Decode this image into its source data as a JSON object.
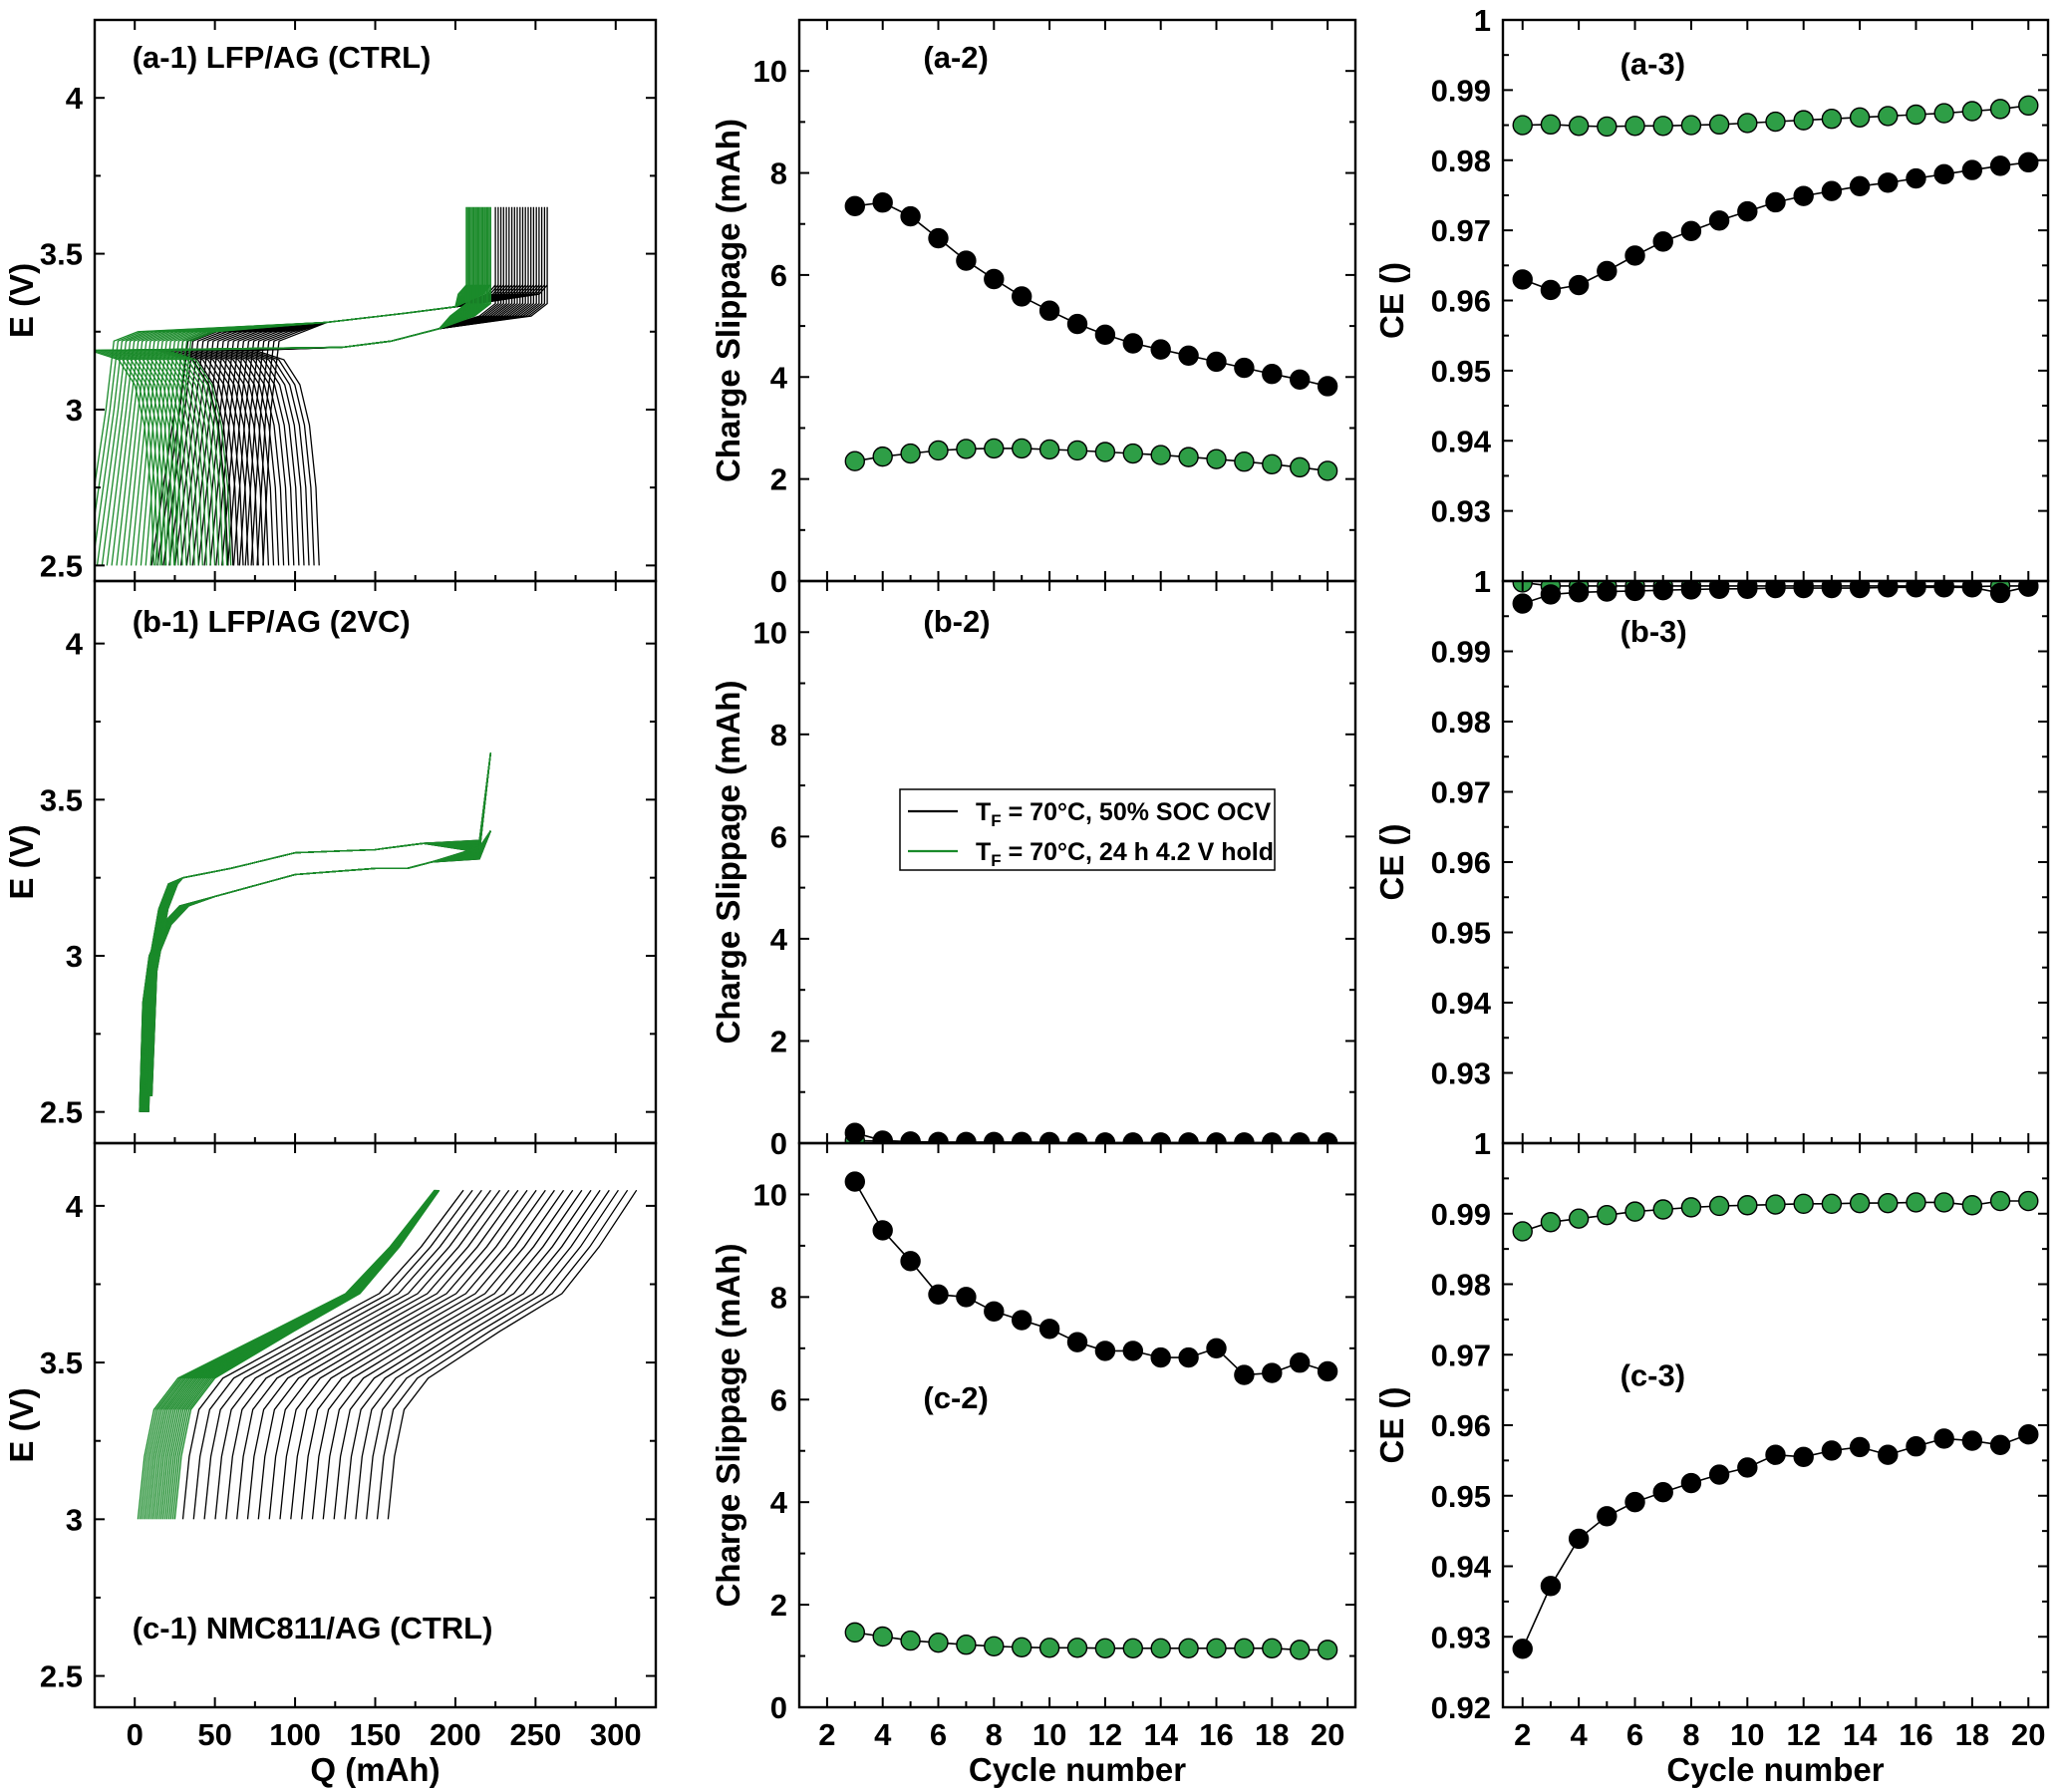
{
  "colors": {
    "black_series": "#000000",
    "green_series": "#2e9e46",
    "green_line": "#1a8a2a"
  },
  "legend": {
    "entries": [
      {
        "prefix": "T",
        "sub": "F",
        "suffix": " = 70°C, 50% SOC OCV"
      },
      {
        "prefix": "T",
        "sub": "F",
        "suffix": " = 70°C, 24 h 4.2 V hold"
      }
    ],
    "placement": "panel b-2 center"
  },
  "chart_data": [
    {
      "id": "a-1",
      "type": "line",
      "tag": "(a-1) LFP/AG (CTRL)",
      "xlabel": "",
      "ylabel": "E (V)",
      "xlim": [
        -25,
        325
      ],
      "ylim": [
        2.45,
        4.25
      ],
      "yticks": [
        "2.5",
        "3",
        "3.5",
        "4"
      ],
      "series": [
        {
          "family": "TF = 70°C, 50% SOC OCV",
          "count": 20,
          "q_end_first": 115,
          "q_end_last": 55,
          "v_max": 3.65
        },
        {
          "family": "TF = 70°C, 24 h 4.2 V hold",
          "count": 20,
          "q_end_first": 60,
          "q_end_last": 12,
          "v_max": 3.65
        }
      ]
    },
    {
      "id": "b-1",
      "type": "line",
      "tag": "(b-1) LFP/AG (2VC)",
      "xlabel": "",
      "ylabel": "E (V)",
      "xlim": [
        -25,
        325
      ],
      "ylim": [
        2.4,
        4.2
      ],
      "yticks": [
        "2.5",
        "3",
        "3.5",
        "4"
      ],
      "series": [
        {
          "family": "TF = 70°C, 50% SOC OCV",
          "count": 20,
          "q_max": 222,
          "v_max": 3.65
        },
        {
          "family": "TF = 70°C, 24 h 4.2 V hold",
          "count": 20,
          "q_max": 222,
          "v_max": 3.65
        }
      ]
    },
    {
      "id": "c-1",
      "type": "line",
      "tag": "(c-1) NMC811/AG (CTRL)",
      "xlabel": "Q (mAh)",
      "ylabel": "E (V)",
      "xlim": [
        -25,
        325
      ],
      "ylim": [
        2.4,
        4.2
      ],
      "yticks": [
        "2.5",
        "3",
        "3.5",
        "4"
      ],
      "xticks": [
        "0",
        "50",
        "100",
        "150",
        "200",
        "250",
        "300"
      ],
      "series": [
        {
          "family": "TF = 70°C, 50% SOC OCV",
          "count": 20,
          "q_start_first": 30,
          "q_start_last": 158,
          "q_top_last": 312,
          "v_max": 4.05
        },
        {
          "family": "TF = 70°C, 24 h 4.2 V hold",
          "count": 20,
          "q_start_first": 25,
          "q_start_last": 2,
          "q_top_last": 190,
          "v_max": 4.05
        }
      ]
    },
    {
      "id": "a-2",
      "type": "scatter",
      "tag": "(a-2)",
      "xlabel": "",
      "ylabel": "Charge Slippage (mAh)",
      "xlim": [
        1,
        21
      ],
      "ylim": [
        0,
        11
      ],
      "yticks": [
        "0",
        "2",
        "4",
        "6",
        "8",
        "10"
      ],
      "x": [
        3,
        4,
        5,
        6,
        7,
        8,
        9,
        10,
        11,
        12,
        13,
        14,
        15,
        16,
        17,
        18,
        19,
        20
      ],
      "series": [
        {
          "values": [
            7.35,
            7.42,
            7.15,
            6.72,
            6.28,
            5.92,
            5.58,
            5.3,
            5.04,
            4.83,
            4.66,
            4.54,
            4.42,
            4.3,
            4.18,
            4.06,
            3.95,
            3.82
          ]
        },
        {
          "values": [
            2.35,
            2.44,
            2.5,
            2.56,
            2.59,
            2.6,
            2.6,
            2.58,
            2.56,
            2.53,
            2.5,
            2.47,
            2.43,
            2.39,
            2.34,
            2.29,
            2.23,
            2.16
          ]
        }
      ]
    },
    {
      "id": "b-2",
      "type": "scatter",
      "tag": "(b-2)",
      "xlabel": "",
      "ylabel": "Charge Slippage (mAh)",
      "xlim": [
        1,
        21
      ],
      "ylim": [
        0,
        11
      ],
      "yticks": [
        "0",
        "2",
        "4",
        "6",
        "8",
        "10"
      ],
      "x": [
        3,
        4,
        5,
        6,
        7,
        8,
        9,
        10,
        11,
        12,
        13,
        14,
        15,
        16,
        17,
        18,
        19,
        20
      ],
      "series": [
        {
          "values": [
            0.2,
            0.05,
            0.03,
            0.02,
            0.02,
            0.02,
            0.02,
            0.02,
            0.01,
            0.01,
            0.01,
            0.01,
            0.01,
            0.01,
            0.01,
            0.01,
            0.01,
            0.01
          ]
        },
        {
          "values": [
            0.05,
            0.04,
            0.03,
            0.02,
            0.02,
            0.02,
            0.02,
            0.01,
            0.01,
            0.01,
            0.01,
            0.01,
            0.01,
            0.01,
            0.01,
            0.01,
            0.01,
            0.01
          ]
        }
      ]
    },
    {
      "id": "c-2",
      "type": "scatter",
      "tag": "(c-2)",
      "xlabel": "Cycle number",
      "ylabel": "Charge Slippage (mAh)",
      "xlim": [
        1,
        21
      ],
      "ylim": [
        0,
        11
      ],
      "yticks": [
        "0",
        "2",
        "4",
        "6",
        "8",
        "10"
      ],
      "xticks": [
        "2",
        "4",
        "6",
        "8",
        "10",
        "12",
        "14",
        "16",
        "18",
        "20"
      ],
      "x": [
        3,
        4,
        5,
        6,
        7,
        8,
        9,
        10,
        11,
        12,
        13,
        14,
        15,
        16,
        17,
        18,
        19,
        20
      ],
      "series": [
        {
          "values": [
            10.25,
            9.3,
            8.7,
            8.05,
            8.0,
            7.72,
            7.55,
            7.38,
            7.12,
            6.95,
            6.95,
            6.82,
            6.82,
            7.0,
            6.48,
            6.52,
            6.72,
            6.55
          ]
        },
        {
          "values": [
            1.46,
            1.38,
            1.3,
            1.26,
            1.22,
            1.19,
            1.17,
            1.16,
            1.16,
            1.15,
            1.15,
            1.15,
            1.15,
            1.15,
            1.15,
            1.15,
            1.12,
            1.12
          ]
        }
      ]
    },
    {
      "id": "a-3",
      "type": "scatter",
      "tag": "(a-3)",
      "xlabel": "",
      "ylabel": "CE ()",
      "xlim": [
        1.3,
        20.7
      ],
      "ylim": [
        0.92,
        1.0
      ],
      "yticks": [
        "0.93",
        "0.94",
        "0.95",
        "0.96",
        "0.97",
        "0.98",
        "0.99",
        "1"
      ],
      "x": [
        2,
        3,
        4,
        5,
        6,
        7,
        8,
        9,
        10,
        11,
        12,
        13,
        14,
        15,
        16,
        17,
        18,
        19,
        20
      ],
      "series": [
        {
          "values": [
            0.963,
            0.9615,
            0.9622,
            0.9642,
            0.9664,
            0.9684,
            0.9699,
            0.9714,
            0.9727,
            0.974,
            0.9749,
            0.9756,
            0.9763,
            0.9768,
            0.9774,
            0.978,
            0.9786,
            0.9792,
            0.9797
          ]
        },
        {
          "values": [
            0.985,
            0.9851,
            0.9849,
            0.9848,
            0.9849,
            0.9849,
            0.985,
            0.9851,
            0.9853,
            0.9855,
            0.9857,
            0.9859,
            0.9861,
            0.9863,
            0.9865,
            0.9867,
            0.987,
            0.9873,
            0.9878
          ]
        }
      ]
    },
    {
      "id": "b-3",
      "type": "scatter",
      "tag": "(b-3)",
      "xlabel": "",
      "ylabel": "CE ()",
      "xlim": [
        1.3,
        20.7
      ],
      "ylim": [
        0.92,
        1.0
      ],
      "yticks": [
        "0.93",
        "0.94",
        "0.95",
        "0.96",
        "0.97",
        "0.98",
        "0.99",
        "1"
      ],
      "x": [
        2,
        3,
        4,
        5,
        6,
        7,
        8,
        9,
        10,
        11,
        12,
        13,
        14,
        15,
        16,
        17,
        18,
        19,
        20
      ],
      "series": [
        {
          "values": [
            0.9968,
            0.9981,
            0.9984,
            0.9985,
            0.9986,
            0.9987,
            0.9988,
            0.9989,
            0.9989,
            0.999,
            0.999,
            0.999,
            0.999,
            0.9991,
            0.9991,
            0.9991,
            0.9991,
            0.9983,
            0.9992
          ]
        },
        {
          "values": [
            0.9998,
            0.9993,
            0.9993,
            0.9993,
            0.9993,
            0.9993,
            0.9993,
            0.9993,
            0.9993,
            0.9993,
            0.9993,
            0.9993,
            0.9993,
            0.9993,
            0.9993,
            0.9993,
            0.9992,
            0.9993,
            0.9993
          ]
        }
      ]
    },
    {
      "id": "c-3",
      "type": "scatter",
      "tag": "(c-3)",
      "xlabel": "Cycle number",
      "ylabel": "CE ()",
      "xlim": [
        1.3,
        20.7
      ],
      "ylim": [
        0.92,
        1.0
      ],
      "yticks": [
        "0.92",
        "0.93",
        "0.94",
        "0.95",
        "0.96",
        "0.97",
        "0.98",
        "0.99",
        "1"
      ],
      "xticks": [
        "2",
        "4",
        "6",
        "8",
        "10",
        "12",
        "14",
        "16",
        "18",
        "20"
      ],
      "x": [
        2,
        3,
        4,
        5,
        6,
        7,
        8,
        9,
        10,
        11,
        12,
        13,
        14,
        15,
        16,
        17,
        18,
        19,
        20
      ],
      "series": [
        {
          "values": [
            0.9283,
            0.9372,
            0.9439,
            0.9471,
            0.9491,
            0.9505,
            0.9518,
            0.953,
            0.954,
            0.9558,
            0.9555,
            0.9564,
            0.9569,
            0.9558,
            0.957,
            0.9581,
            0.9578,
            0.9572,
            0.9587
          ]
        },
        {
          "values": [
            0.9875,
            0.9888,
            0.9893,
            0.9898,
            0.9903,
            0.9906,
            0.9909,
            0.9911,
            0.9912,
            0.9913,
            0.9914,
            0.9914,
            0.9915,
            0.9915,
            0.9916,
            0.9916,
            0.9912,
            0.9918,
            0.9918
          ]
        }
      ]
    }
  ]
}
